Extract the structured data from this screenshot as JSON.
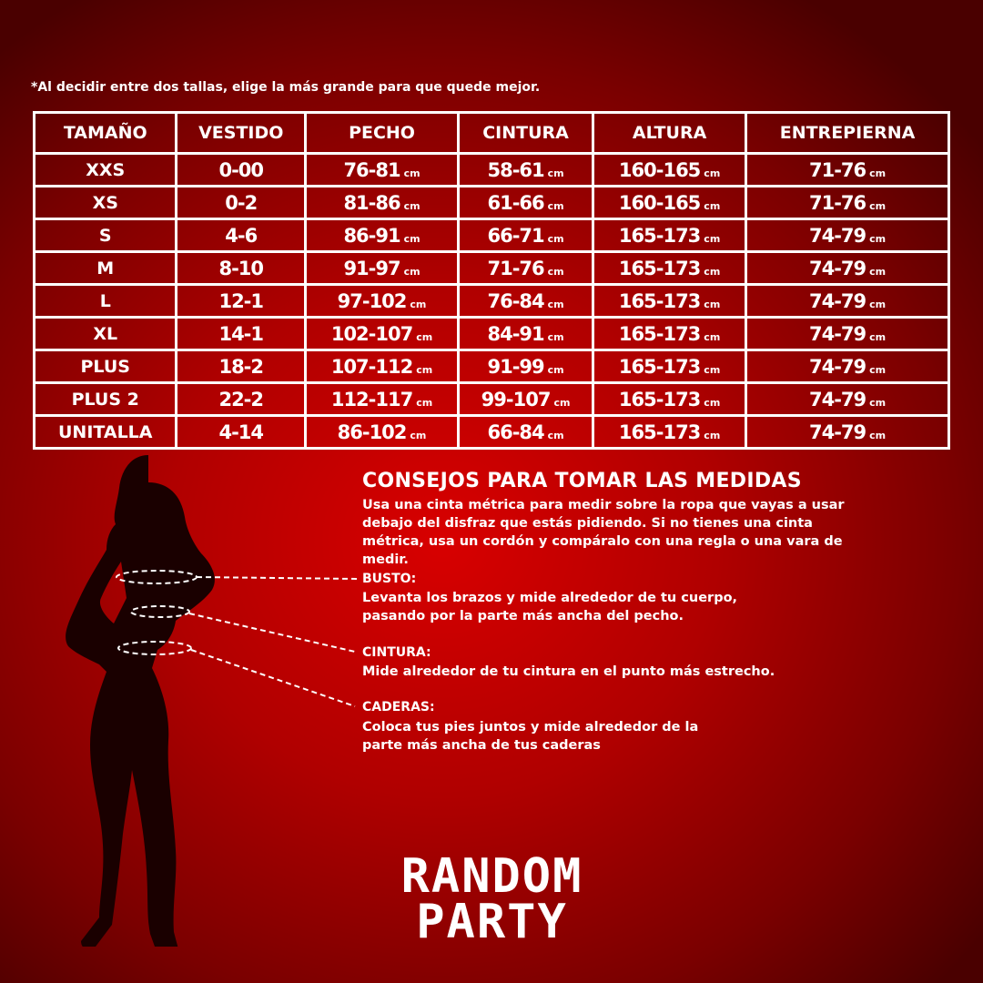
{
  "note": "*Al decidir entre dos tallas, elige la más grande para que quede mejor.",
  "table": {
    "headers": [
      "TAMAÑO",
      "VESTIDO",
      "PECHO",
      "CINTURA",
      "ALTURA",
      "ENTREPIERNA"
    ],
    "unit": "cm",
    "rows": [
      [
        "XXS",
        "0-00",
        "76-81",
        "58-61",
        "160-165",
        "71-76"
      ],
      [
        "XS",
        "0-2",
        "81-86",
        "61-66",
        "160-165",
        "71-76"
      ],
      [
        "S",
        "4-6",
        "86-91",
        "66-71",
        "165-173",
        "74-79"
      ],
      [
        "M",
        "8-10",
        "91-97",
        "71-76",
        "165-173",
        "74-79"
      ],
      [
        "L",
        "12-1",
        "97-102",
        "76-84",
        "165-173",
        "74-79"
      ],
      [
        "XL",
        "14-1",
        "102-107",
        "84-91",
        "165-173",
        "74-79"
      ],
      [
        "PLUS",
        "18-2",
        "107-112",
        "91-99",
        "165-173",
        "74-79"
      ],
      [
        "PLUS 2",
        "22-2",
        "112-117",
        "99-107",
        "165-173",
        "74-79"
      ],
      [
        "UNITALLA",
        "4-14",
        "86-102",
        "66-84",
        "165-173",
        "74-79"
      ]
    ]
  },
  "tips": {
    "title": "CONSEJOS PARA TOMAR LAS MEDIDAS",
    "intro": "Usa una cinta métrica para medir sobre la ropa que vayas a usar debajo del disfraz que estás pidiendo. Si no tienes una cinta métrica, usa un cordón y compáralo con una regla o una vara de medir.",
    "busto_label": "BUSTO:",
    "busto_text": "Levanta los brazos y mide alrededor de tu cuerpo, pasando por la parte más ancha del pecho.",
    "cintura_label": "CINTURA:",
    "cintura_text": "Mide alrededor de tu cintura en el punto más estrecho.",
    "caderas_label": "CADERAS:",
    "caderas_text": "Coloca tus pies juntos y mide alrededor de la parte más ancha de tus caderas"
  },
  "logo": {
    "line1": "RANDOM",
    "line2": "PARTY"
  },
  "colors": {
    "background": "#c00000",
    "text": "#ffffff"
  }
}
